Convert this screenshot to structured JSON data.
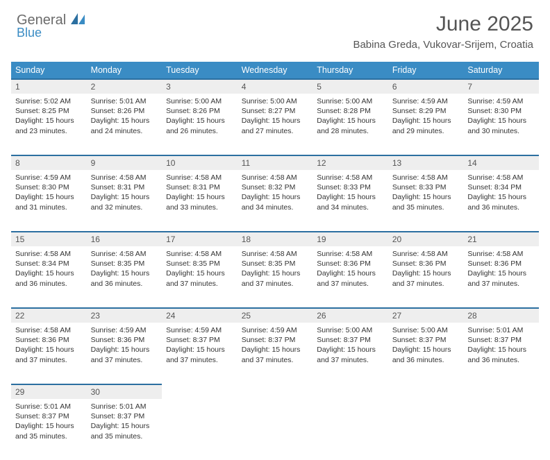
{
  "brand": {
    "main": "General",
    "sub": "Blue"
  },
  "title": "June 2025",
  "location": "Babina Greda, Vukovar-Srijem, Croatia",
  "colors": {
    "header_bg": "#3a8cc4",
    "header_text": "#ffffff",
    "daynum_bg": "#eeeeee",
    "rule": "#2b6fa0",
    "body_bg": "#ffffff",
    "text": "#333333",
    "title": "#555555",
    "logo_main": "#6b6b6b",
    "logo_sub": "#3a8cc4"
  },
  "typography": {
    "title_fontsize": 30,
    "location_fontsize": 15,
    "weekday_fontsize": 12.5,
    "daynum_fontsize": 12,
    "cell_fontsize": 10.5
  },
  "weekdays": [
    "Sunday",
    "Monday",
    "Tuesday",
    "Wednesday",
    "Thursday",
    "Friday",
    "Saturday"
  ],
  "weeks": [
    [
      {
        "day": "1",
        "sunrise": "Sunrise: 5:02 AM",
        "sunset": "Sunset: 8:25 PM",
        "daylight": "Daylight: 15 hours and 23 minutes."
      },
      {
        "day": "2",
        "sunrise": "Sunrise: 5:01 AM",
        "sunset": "Sunset: 8:26 PM",
        "daylight": "Daylight: 15 hours and 24 minutes."
      },
      {
        "day": "3",
        "sunrise": "Sunrise: 5:00 AM",
        "sunset": "Sunset: 8:26 PM",
        "daylight": "Daylight: 15 hours and 26 minutes."
      },
      {
        "day": "4",
        "sunrise": "Sunrise: 5:00 AM",
        "sunset": "Sunset: 8:27 PM",
        "daylight": "Daylight: 15 hours and 27 minutes."
      },
      {
        "day": "5",
        "sunrise": "Sunrise: 5:00 AM",
        "sunset": "Sunset: 8:28 PM",
        "daylight": "Daylight: 15 hours and 28 minutes."
      },
      {
        "day": "6",
        "sunrise": "Sunrise: 4:59 AM",
        "sunset": "Sunset: 8:29 PM",
        "daylight": "Daylight: 15 hours and 29 minutes."
      },
      {
        "day": "7",
        "sunrise": "Sunrise: 4:59 AM",
        "sunset": "Sunset: 8:30 PM",
        "daylight": "Daylight: 15 hours and 30 minutes."
      }
    ],
    [
      {
        "day": "8",
        "sunrise": "Sunrise: 4:59 AM",
        "sunset": "Sunset: 8:30 PM",
        "daylight": "Daylight: 15 hours and 31 minutes."
      },
      {
        "day": "9",
        "sunrise": "Sunrise: 4:58 AM",
        "sunset": "Sunset: 8:31 PM",
        "daylight": "Daylight: 15 hours and 32 minutes."
      },
      {
        "day": "10",
        "sunrise": "Sunrise: 4:58 AM",
        "sunset": "Sunset: 8:31 PM",
        "daylight": "Daylight: 15 hours and 33 minutes."
      },
      {
        "day": "11",
        "sunrise": "Sunrise: 4:58 AM",
        "sunset": "Sunset: 8:32 PM",
        "daylight": "Daylight: 15 hours and 34 minutes."
      },
      {
        "day": "12",
        "sunrise": "Sunrise: 4:58 AM",
        "sunset": "Sunset: 8:33 PM",
        "daylight": "Daylight: 15 hours and 34 minutes."
      },
      {
        "day": "13",
        "sunrise": "Sunrise: 4:58 AM",
        "sunset": "Sunset: 8:33 PM",
        "daylight": "Daylight: 15 hours and 35 minutes."
      },
      {
        "day": "14",
        "sunrise": "Sunrise: 4:58 AM",
        "sunset": "Sunset: 8:34 PM",
        "daylight": "Daylight: 15 hours and 36 minutes."
      }
    ],
    [
      {
        "day": "15",
        "sunrise": "Sunrise: 4:58 AM",
        "sunset": "Sunset: 8:34 PM",
        "daylight": "Daylight: 15 hours and 36 minutes."
      },
      {
        "day": "16",
        "sunrise": "Sunrise: 4:58 AM",
        "sunset": "Sunset: 8:35 PM",
        "daylight": "Daylight: 15 hours and 36 minutes."
      },
      {
        "day": "17",
        "sunrise": "Sunrise: 4:58 AM",
        "sunset": "Sunset: 8:35 PM",
        "daylight": "Daylight: 15 hours and 37 minutes."
      },
      {
        "day": "18",
        "sunrise": "Sunrise: 4:58 AM",
        "sunset": "Sunset: 8:35 PM",
        "daylight": "Daylight: 15 hours and 37 minutes."
      },
      {
        "day": "19",
        "sunrise": "Sunrise: 4:58 AM",
        "sunset": "Sunset: 8:36 PM",
        "daylight": "Daylight: 15 hours and 37 minutes."
      },
      {
        "day": "20",
        "sunrise": "Sunrise: 4:58 AM",
        "sunset": "Sunset: 8:36 PM",
        "daylight": "Daylight: 15 hours and 37 minutes."
      },
      {
        "day": "21",
        "sunrise": "Sunrise: 4:58 AM",
        "sunset": "Sunset: 8:36 PM",
        "daylight": "Daylight: 15 hours and 37 minutes."
      }
    ],
    [
      {
        "day": "22",
        "sunrise": "Sunrise: 4:58 AM",
        "sunset": "Sunset: 8:36 PM",
        "daylight": "Daylight: 15 hours and 37 minutes."
      },
      {
        "day": "23",
        "sunrise": "Sunrise: 4:59 AM",
        "sunset": "Sunset: 8:36 PM",
        "daylight": "Daylight: 15 hours and 37 minutes."
      },
      {
        "day": "24",
        "sunrise": "Sunrise: 4:59 AM",
        "sunset": "Sunset: 8:37 PM",
        "daylight": "Daylight: 15 hours and 37 minutes."
      },
      {
        "day": "25",
        "sunrise": "Sunrise: 4:59 AM",
        "sunset": "Sunset: 8:37 PM",
        "daylight": "Daylight: 15 hours and 37 minutes."
      },
      {
        "day": "26",
        "sunrise": "Sunrise: 5:00 AM",
        "sunset": "Sunset: 8:37 PM",
        "daylight": "Daylight: 15 hours and 37 minutes."
      },
      {
        "day": "27",
        "sunrise": "Sunrise: 5:00 AM",
        "sunset": "Sunset: 8:37 PM",
        "daylight": "Daylight: 15 hours and 36 minutes."
      },
      {
        "day": "28",
        "sunrise": "Sunrise: 5:01 AM",
        "sunset": "Sunset: 8:37 PM",
        "daylight": "Daylight: 15 hours and 36 minutes."
      }
    ],
    [
      {
        "day": "29",
        "sunrise": "Sunrise: 5:01 AM",
        "sunset": "Sunset: 8:37 PM",
        "daylight": "Daylight: 15 hours and 35 minutes."
      },
      {
        "day": "30",
        "sunrise": "Sunrise: 5:01 AM",
        "sunset": "Sunset: 8:37 PM",
        "daylight": "Daylight: 15 hours and 35 minutes."
      },
      null,
      null,
      null,
      null,
      null
    ]
  ]
}
